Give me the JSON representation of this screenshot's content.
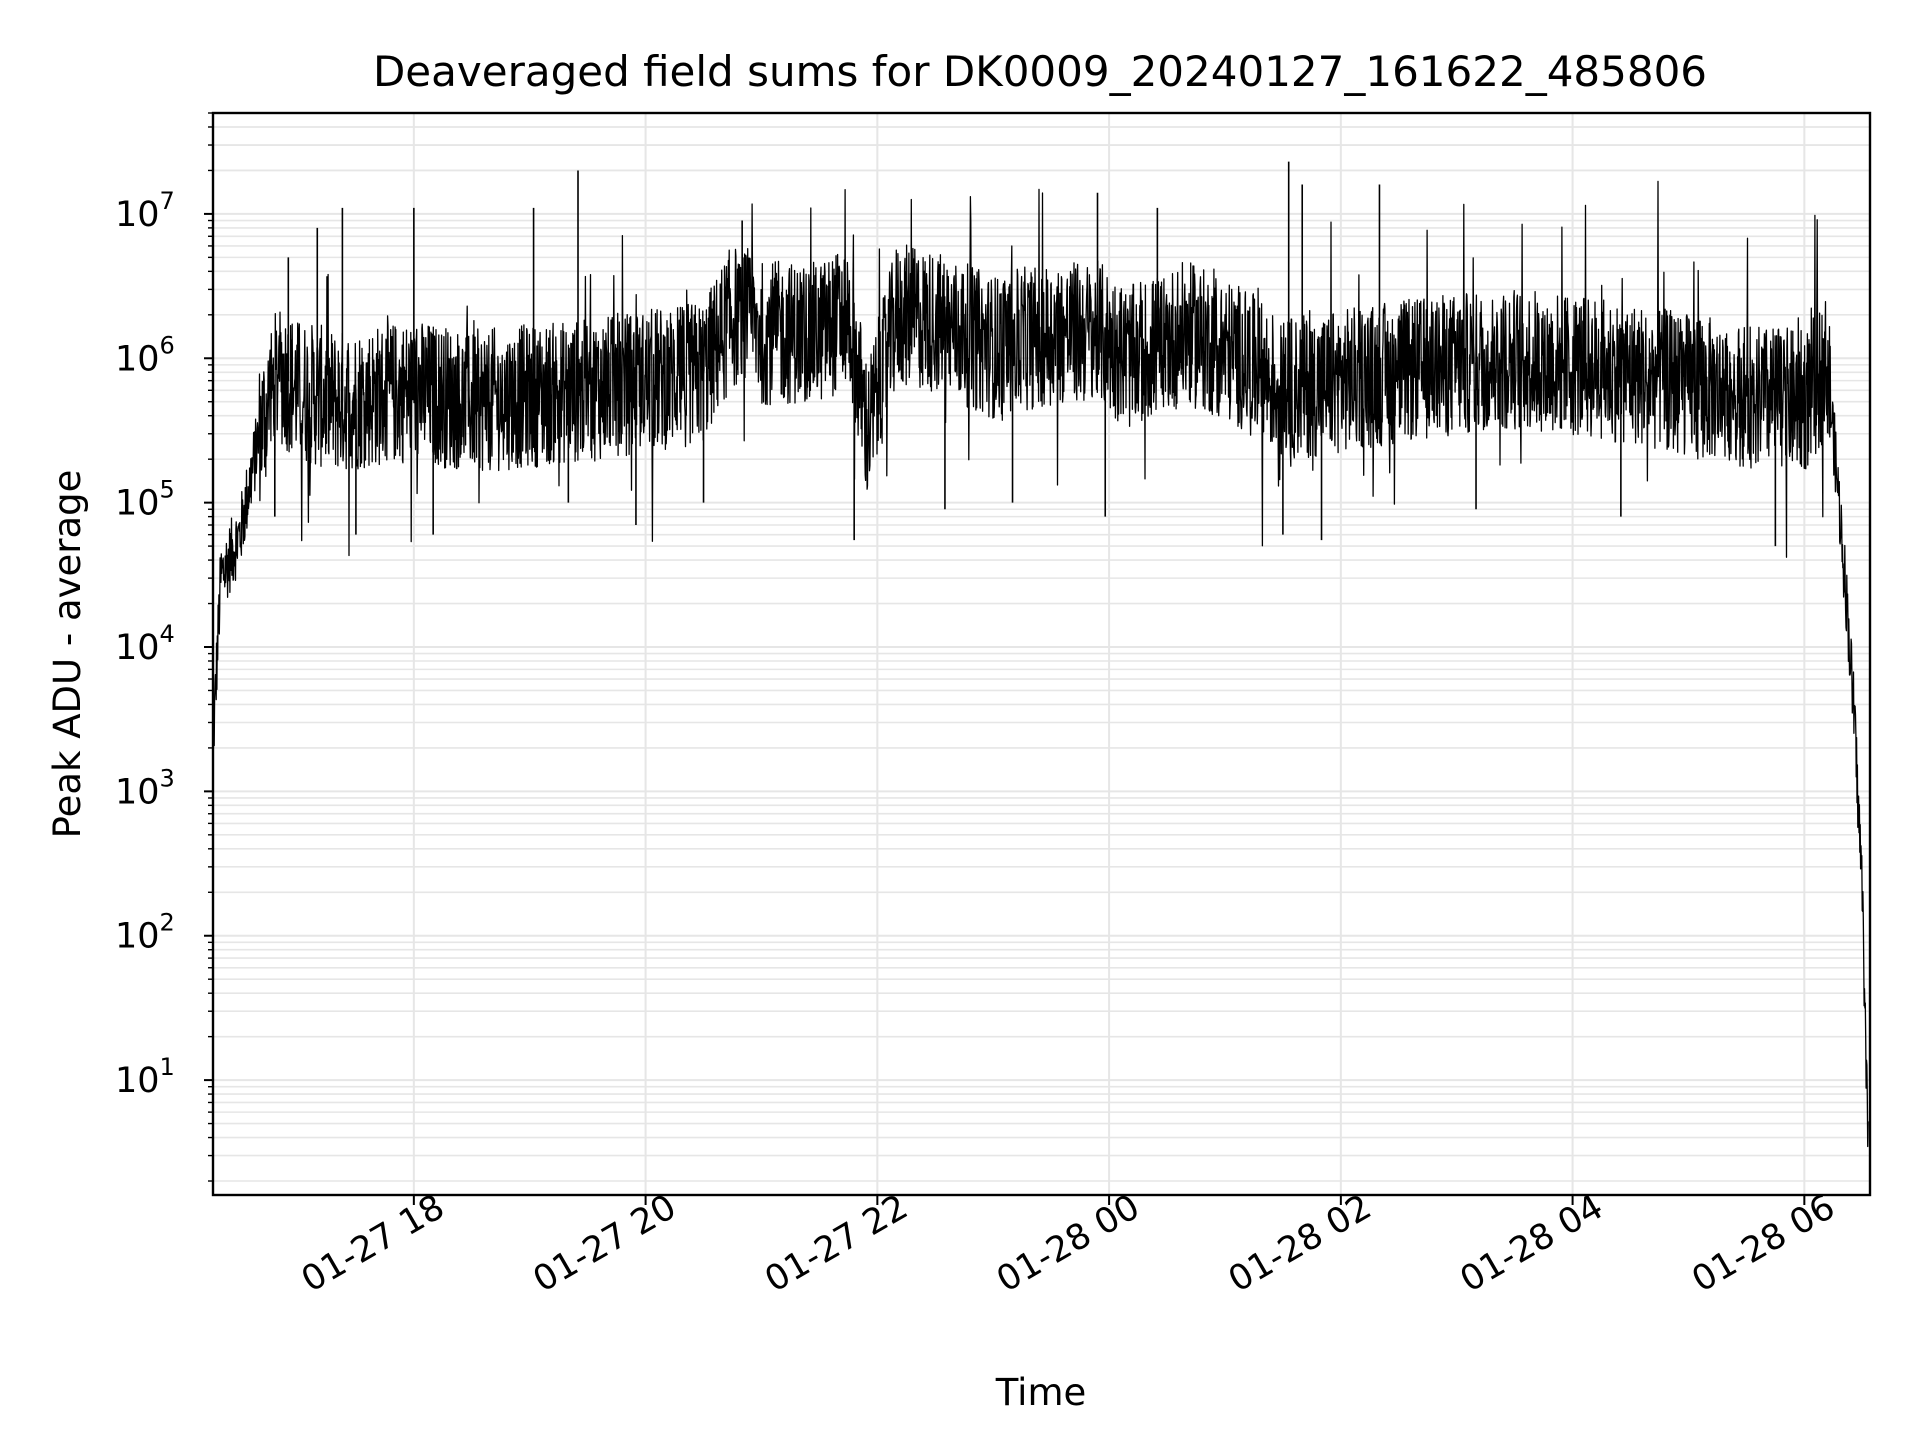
{
  "chart_data": {
    "type": "line",
    "title": "Deaveraged field sums for DK0009_20240127_161622_485806",
    "xlabel": "Time",
    "ylabel": "Peak ADU - average",
    "yscale": "log",
    "ylim": [
      1.6,
      50000000
    ],
    "xlim": [
      "2024-01-27 16:16",
      "2024-01-28 06:34"
    ],
    "x_ticks": [
      "01-27 18",
      "01-27 20",
      "01-27 22",
      "01-28 00",
      "01-28 02",
      "01-28 04",
      "01-28 06"
    ],
    "y_ticks": [
      {
        "base": "10",
        "exp": "1"
      },
      {
        "base": "10",
        "exp": "2"
      },
      {
        "base": "10",
        "exp": "3"
      },
      {
        "base": "10",
        "exp": "4"
      },
      {
        "base": "10",
        "exp": "5"
      },
      {
        "base": "10",
        "exp": "6"
      },
      {
        "base": "10",
        "exp": "7"
      }
    ],
    "grid": true,
    "series_color": "#000000",
    "series": [
      {
        "x": [
          "2024-01-27 16:16",
          "2024-01-27 16:20",
          "2024-01-27 16:30",
          "2024-01-27 16:40",
          "2024-01-27 16:50",
          "2024-01-27 17:00",
          "2024-01-27 17:20",
          "2024-01-27 17:40",
          "2024-01-27 18:00",
          "2024-01-27 18:30",
          "2024-01-27 19:00",
          "2024-01-27 19:30",
          "2024-01-27 20:00",
          "2024-01-27 20:30",
          "2024-01-27 20:45",
          "2024-01-27 21:00",
          "2024-01-27 21:30",
          "2024-01-27 21:45",
          "2024-01-27 21:55",
          "2024-01-27 22:10",
          "2024-01-27 22:30",
          "2024-01-27 23:00",
          "2024-01-27 23:30",
          "2024-01-27 23:55",
          "2024-01-28 00:10",
          "2024-01-28 00:40",
          "2024-01-28 01:10",
          "2024-01-28 01:30",
          "2024-01-28 02:00",
          "2024-01-28 02:30",
          "2024-01-28 03:00",
          "2024-01-28 03:30",
          "2024-01-28 04:00",
          "2024-01-28 04:30",
          "2024-01-28 05:00",
          "2024-01-28 05:30",
          "2024-01-28 06:00",
          "2024-01-28 06:12",
          "2024-01-28 06:18",
          "2024-01-28 06:22",
          "2024-01-28 06:26",
          "2024-01-28 06:30",
          "2024-01-28 06:33"
        ],
        "values": [
          2000,
          30000,
          60000,
          300000,
          800000,
          600000,
          500000,
          550000,
          600000,
          500000,
          550000,
          600000,
          700000,
          800000,
          2000000,
          1500000,
          1500000,
          2000000,
          300000,
          2000000,
          1800000,
          1200000,
          1500000,
          1500000,
          1000000,
          1500000,
          1000000,
          600000,
          700000,
          800000,
          900000,
          1000000,
          900000,
          800000,
          650000,
          550000,
          500000,
          900000,
          100000,
          20000,
          3000,
          200,
          4
        ]
      },
      {
        "x": [
          "2024-01-27 16:55",
          "2024-01-27 17:10",
          "2024-01-27 17:23",
          "2024-01-27 18:00",
          "2024-01-27 19:02",
          "2024-01-27 19:25",
          "2024-01-27 20:50",
          "2024-01-27 23:54",
          "2024-01-28 00:25",
          "2024-01-28 01:33",
          "2024-01-28 01:40",
          "2024-01-28 02:20"
        ],
        "values": [
          5000000,
          8000000,
          11000000,
          11000000,
          11000000,
          20000000,
          9000000,
          14000000,
          11000000,
          23000000,
          16000000,
          16000000
        ]
      },
      {
        "x": [
          "2024-01-27 16:48",
          "2024-01-27 17:30",
          "2024-01-27 18:10",
          "2024-01-27 19:20",
          "2024-01-27 19:55",
          "2024-01-27 20:30",
          "2024-01-27 21:48",
          "2024-01-27 22:35",
          "2024-01-27 23:10",
          "2024-01-27 23:58",
          "2024-01-28 01:30",
          "2024-01-28 01:50",
          "2024-01-28 03:10",
          "2024-01-28 04:25",
          "2024-01-28 05:45"
        ],
        "values": [
          80000,
          60000,
          60000,
          100000,
          70000,
          100000,
          55000,
          90000,
          100000,
          80000,
          60000,
          55000,
          90000,
          80000,
          50000
        ]
      }
    ]
  }
}
